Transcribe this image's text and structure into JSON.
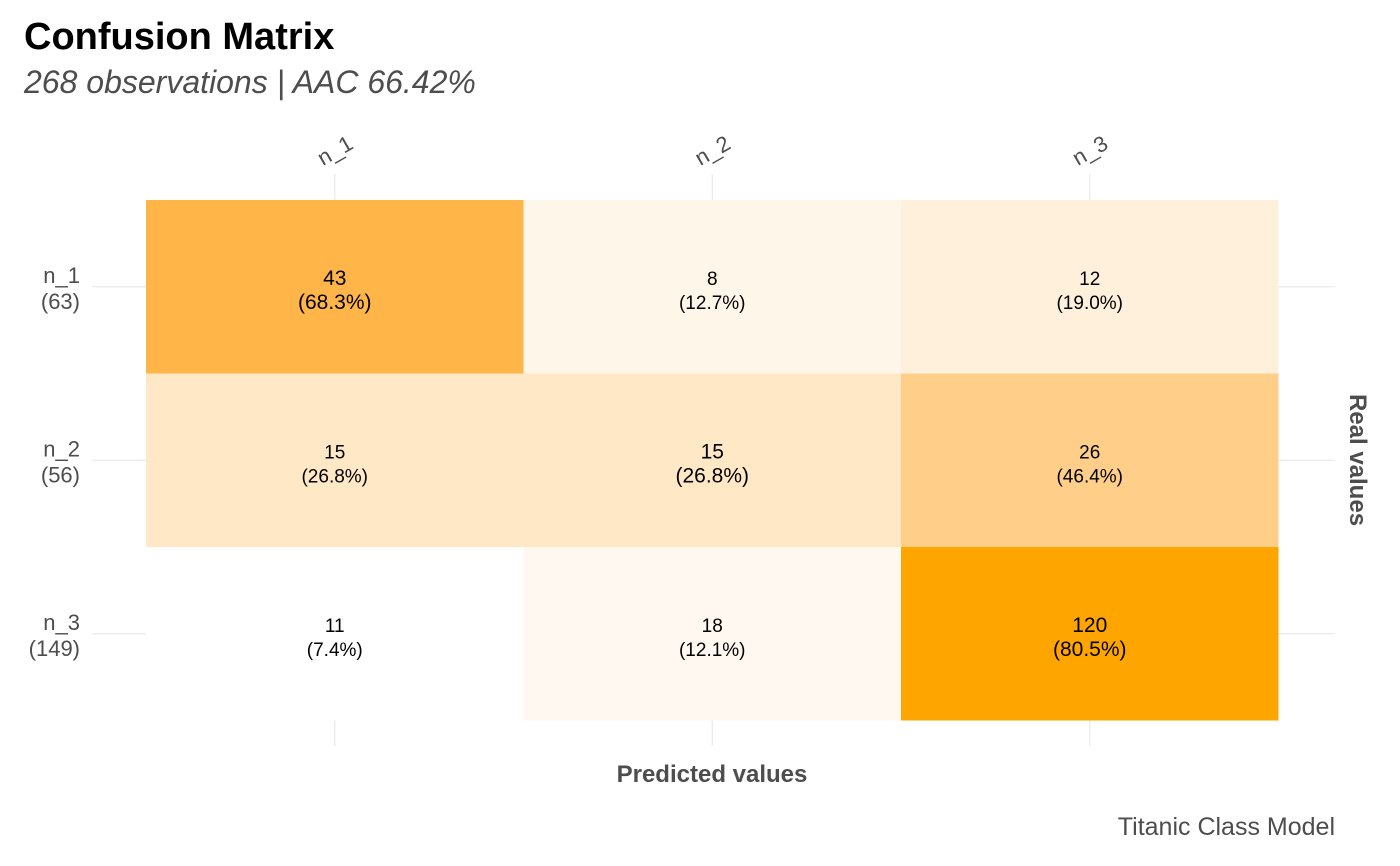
{
  "chart_data": {
    "type": "heatmap",
    "title": "Confusion Matrix",
    "subtitle": "268 observations | AAC 66.42%",
    "caption": "Titanic Class Model",
    "xlabel": "Predicted values",
    "ylabel": "Real values",
    "x_categories": [
      "n_1",
      "n_2",
      "n_3"
    ],
    "y_categories": [
      {
        "label": "n_1",
        "total": "(63)"
      },
      {
        "label": "n_2",
        "total": "(56)"
      },
      {
        "label": "n_3",
        "total": "(149)"
      }
    ],
    "cells": [
      [
        {
          "count": "43",
          "pct": "(68.3%)",
          "fill": "#ffb547"
        },
        {
          "count": "8",
          "pct": "(12.7%)",
          "fill": "#fff6ea"
        },
        {
          "count": "12",
          "pct": "(19.0%)",
          "fill": "#fff0db"
        }
      ],
      [
        {
          "count": "15",
          "pct": "(26.8%)",
          "fill": "#ffe8c6"
        },
        {
          "count": "15",
          "pct": "(26.8%)",
          "fill": "#ffe8c6"
        },
        {
          "count": "26",
          "pct": "(46.4%)",
          "fill": "#ffcf8a"
        }
      ],
      [
        {
          "count": "11",
          "pct": "(7.4%)",
          "fill": "#ffffff"
        },
        {
          "count": "18",
          "pct": "(12.1%)",
          "fill": "#fff8f1"
        },
        {
          "count": "120",
          "pct": "(80.5%)",
          "fill": "#ffa500"
        }
      ]
    ],
    "grid": true,
    "legend": "none",
    "colors": {
      "low": "#ffffff",
      "high": "#ffa500",
      "grid": "#e5e5e5"
    }
  }
}
